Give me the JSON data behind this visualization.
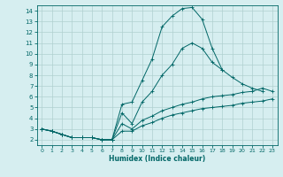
{
  "xlabel": "Humidex (Indice chaleur)",
  "background_color": "#d6eef0",
  "grid_color": "#b0d0d0",
  "line_color": "#006666",
  "xlim": [
    -0.5,
    23.5
  ],
  "ylim": [
    1.5,
    14.5
  ],
  "xticks": [
    0,
    1,
    2,
    3,
    4,
    5,
    6,
    7,
    8,
    9,
    10,
    11,
    12,
    13,
    14,
    15,
    16,
    17,
    18,
    19,
    20,
    21,
    22,
    23
  ],
  "yticks": [
    2,
    3,
    4,
    5,
    6,
    7,
    8,
    9,
    10,
    11,
    12,
    13,
    14
  ],
  "series": [
    {
      "x": [
        0,
        1,
        2,
        3,
        4,
        5,
        6,
        7,
        8,
        9,
        10,
        11,
        12,
        13,
        14,
        15,
        16,
        17,
        18
      ],
      "y": [
        3.0,
        2.8,
        2.5,
        2.2,
        2.2,
        2.2,
        2.0,
        2.0,
        5.3,
        5.5,
        7.5,
        9.5,
        12.5,
        13.5,
        14.2,
        14.3,
        13.2,
        10.5,
        8.5
      ],
      "linestyle": "-",
      "marker": "+"
    },
    {
      "x": [
        0,
        1,
        2,
        3,
        4,
        5,
        6,
        7,
        8,
        9,
        10,
        11,
        12,
        13,
        14,
        15,
        16,
        17,
        18,
        19,
        20,
        21,
        22
      ],
      "y": [
        3.0,
        2.8,
        2.5,
        2.2,
        2.2,
        2.2,
        2.0,
        2.0,
        4.5,
        3.5,
        5.5,
        6.5,
        8.0,
        9.0,
        10.5,
        11.0,
        10.5,
        9.2,
        8.5,
        7.8,
        7.2,
        6.8,
        6.5
      ],
      "linestyle": "-",
      "marker": "+"
    },
    {
      "x": [
        0,
        1,
        2,
        3,
        4,
        5,
        6,
        7,
        8,
        9,
        10,
        11,
        12,
        13,
        14,
        15,
        16,
        17,
        18,
        19,
        20,
        21,
        22,
        23
      ],
      "y": [
        3.0,
        2.8,
        2.5,
        2.2,
        2.2,
        2.2,
        2.0,
        2.0,
        3.5,
        3.0,
        3.8,
        4.2,
        4.7,
        5.0,
        5.3,
        5.5,
        5.8,
        6.0,
        6.1,
        6.2,
        6.4,
        6.5,
        6.8,
        6.5
      ],
      "linestyle": "-",
      "marker": "+"
    },
    {
      "x": [
        0,
        1,
        2,
        3,
        4,
        5,
        6,
        7,
        8,
        9,
        10,
        11,
        12,
        13,
        14,
        15,
        16,
        17,
        18,
        19,
        20,
        21,
        22,
        23
      ],
      "y": [
        3.0,
        2.8,
        2.5,
        2.2,
        2.2,
        2.2,
        2.0,
        2.0,
        2.8,
        2.8,
        3.3,
        3.6,
        4.0,
        4.3,
        4.5,
        4.7,
        4.9,
        5.0,
        5.1,
        5.2,
        5.4,
        5.5,
        5.6,
        5.8
      ],
      "linestyle": "-",
      "marker": "+"
    }
  ]
}
